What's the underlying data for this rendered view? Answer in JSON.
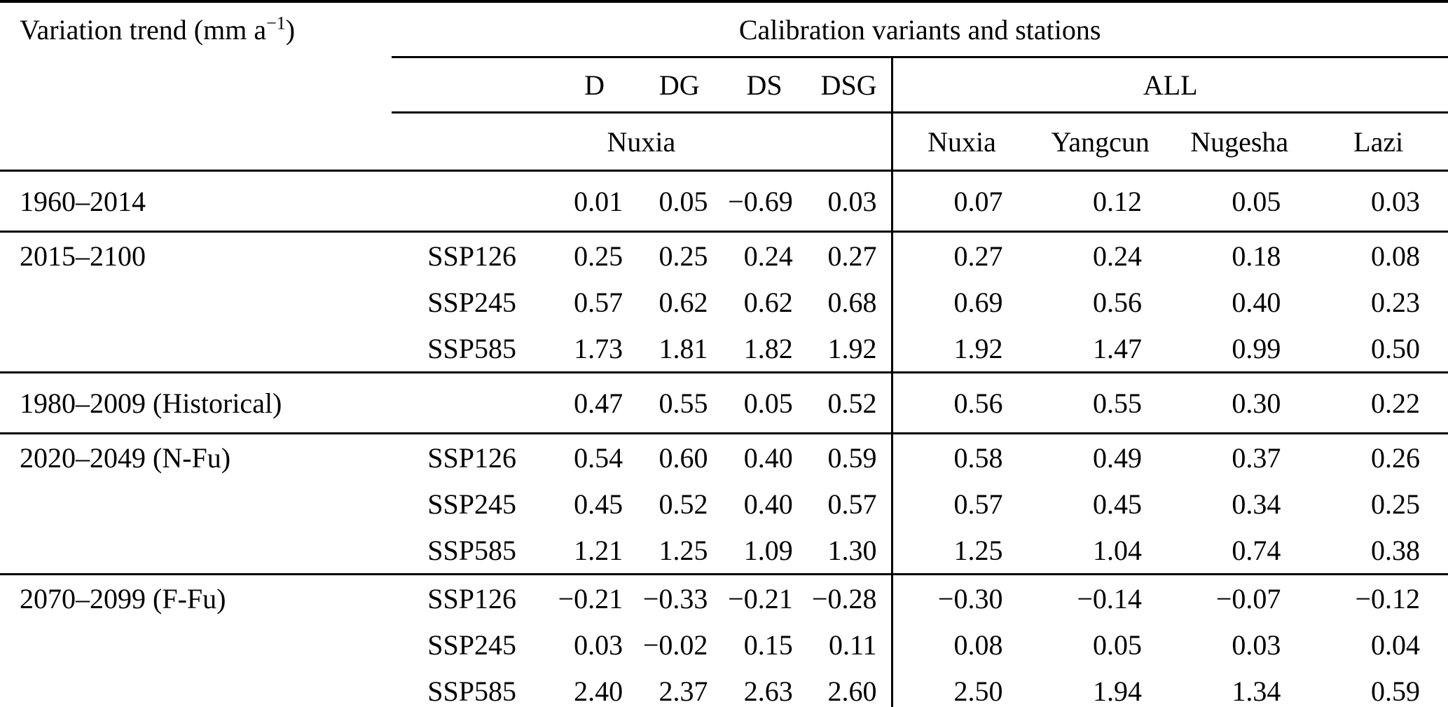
{
  "title": {
    "prefix": "Variation trend (mm a",
    "sup": "−1",
    "suffix": ")"
  },
  "header": {
    "group_title": "Calibration variants and stations",
    "variants": [
      "D",
      "DG",
      "DS",
      "DSG"
    ],
    "all_label": "ALL",
    "left_station": "Nuxia",
    "stations": [
      "Nuxia",
      "Yangcun",
      "Nugesha",
      "Lazi"
    ]
  },
  "rows": [
    {
      "period": "1960–2014",
      "scenario": "",
      "values": [
        "0.01",
        "0.05",
        "−0.69",
        "0.03",
        "0.07",
        "0.12",
        "0.05",
        "0.03"
      ]
    },
    {
      "period": "2015–2100",
      "scenario": "SSP126",
      "values": [
        "0.25",
        "0.25",
        "0.24",
        "0.27",
        "0.27",
        "0.24",
        "0.18",
        "0.08"
      ]
    },
    {
      "period": "",
      "scenario": "SSP245",
      "values": [
        "0.57",
        "0.62",
        "0.62",
        "0.68",
        "0.69",
        "0.56",
        "0.40",
        "0.23"
      ]
    },
    {
      "period": "",
      "scenario": "SSP585",
      "values": [
        "1.73",
        "1.81",
        "1.82",
        "1.92",
        "1.92",
        "1.47",
        "0.99",
        "0.50"
      ]
    },
    {
      "period": "1980–2009 (Historical)",
      "scenario": "",
      "values": [
        "0.47",
        "0.55",
        "0.05",
        "0.52",
        "0.56",
        "0.55",
        "0.30",
        "0.22"
      ]
    },
    {
      "period": "2020–2049 (N-Fu)",
      "scenario": "SSP126",
      "values": [
        "0.54",
        "0.60",
        "0.40",
        "0.59",
        "0.58",
        "0.49",
        "0.37",
        "0.26"
      ]
    },
    {
      "period": "",
      "scenario": "SSP245",
      "values": [
        "0.45",
        "0.52",
        "0.40",
        "0.57",
        "0.57",
        "0.45",
        "0.34",
        "0.25"
      ]
    },
    {
      "period": "",
      "scenario": "SSP585",
      "values": [
        "1.21",
        "1.25",
        "1.09",
        "1.30",
        "1.25",
        "1.04",
        "0.74",
        "0.38"
      ]
    },
    {
      "period": "2070–2099 (F-Fu)",
      "scenario": "SSP126",
      "values": [
        "−0.21",
        "−0.33",
        "−0.21",
        "−0.28",
        "−0.30",
        "−0.14",
        "−0.07",
        "−0.12"
      ]
    },
    {
      "period": "",
      "scenario": "SSP245",
      "values": [
        "0.03",
        "−0.02",
        "0.15",
        "0.11",
        "0.08",
        "0.05",
        "0.03",
        "0.04"
      ]
    },
    {
      "period": "",
      "scenario": "SSP585",
      "values": [
        "2.40",
        "2.37",
        "2.63",
        "2.60",
        "2.50",
        "1.94",
        "1.34",
        "0.59"
      ]
    }
  ]
}
